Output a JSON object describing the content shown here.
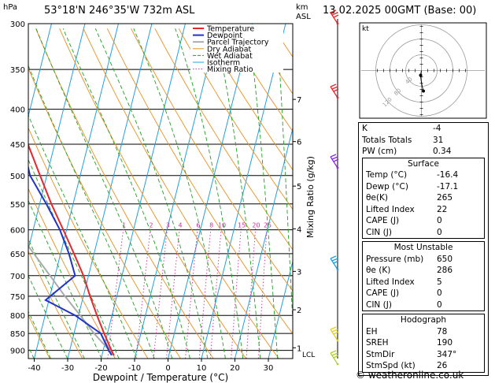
{
  "header": {
    "hpa_label": "hPa",
    "km_label": "km",
    "asl_label": "ASL",
    "station": "53°18'N  246°35'W  732m  ASL",
    "datetime": "13.02.2025  00GMT  (Base: 00)"
  },
  "legend": [
    "Temperature",
    "Dewpoint",
    "Parcel Trajectory",
    "Dry Adiabat",
    "Wet Adiabat",
    "Isotherm",
    "Mixing Ratio"
  ],
  "colors": {
    "temperature": "#e8262d",
    "dewpoint": "#2233cc",
    "parcel": "#aaaaaa",
    "dry_adiabat": "#e89020",
    "wet_adiabat": "#20a020",
    "isotherm": "#20a0e0",
    "mixing_ratio": "#cc30a0"
  },
  "chart_data": {
    "type": "line",
    "title": "",
    "xlabel": "Dewpoint / Temperature (°C)",
    "ylabel": "",
    "right_axis_label": "Mixing Ratio (g/kg)",
    "xlim": [
      -40,
      38
    ],
    "ylim_hpa": [
      925,
      300
    ],
    "pressure_ticks": [
      300,
      350,
      400,
      450,
      500,
      550,
      600,
      650,
      700,
      750,
      800,
      850,
      900
    ],
    "temperature_ticks": [
      -40,
      -30,
      -20,
      -10,
      0,
      10,
      20,
      30
    ],
    "km_ticks": [
      {
        "label": "7",
        "p": 387
      },
      {
        "label": "6",
        "p": 446
      },
      {
        "label": "5",
        "p": 518
      },
      {
        "label": "4",
        "p": 598
      },
      {
        "label": "3",
        "p": 690
      },
      {
        "label": "2",
        "p": 785
      },
      {
        "label": "1",
        "p": 892
      }
    ],
    "lcl_label": "LCL",
    "lcl_p": 910,
    "mixing_ratio_labels": [
      "1",
      "2",
      "3",
      "4",
      "6",
      "8",
      "10",
      "15",
      "20",
      "25"
    ],
    "mixing_ratio_values": [
      1,
      2,
      3,
      4,
      6,
      8,
      10,
      15,
      20,
      25
    ],
    "series": [
      {
        "name": "Temperature",
        "p": [
          915,
          900,
          850,
          800,
          750,
          700,
          650,
          600,
          550,
          500,
          450,
          420
        ],
        "t": [
          -16.4,
          -17.5,
          -21,
          -24.5,
          -28,
          -31.5,
          -36,
          -41,
          -46.5,
          -52,
          -58,
          -61
        ]
      },
      {
        "name": "Dewpoint",
        "p": [
          915,
          900,
          850,
          800,
          760,
          700,
          650,
          600,
          550,
          500,
          450,
          400,
          350,
          300
        ],
        "t": [
          -17.1,
          -18.3,
          -22,
          -31,
          -41,
          -34,
          -37.5,
          -42,
          -48,
          -55,
          -59.5,
          -65,
          -70,
          -75
        ]
      },
      {
        "name": "Parcel Trajectory",
        "p": [
          915,
          850,
          800,
          750,
          700,
          650,
          600,
          550,
          500,
          450,
          400
        ],
        "t": [
          -16.4,
          -24,
          -29.5,
          -35.5,
          -41.5,
          -48,
          -55,
          -62,
          -69.5,
          -77,
          -85
        ]
      }
    ]
  },
  "hodograph": {
    "label": "kt",
    "ring_labels": [
      "40",
      "80",
      "120"
    ],
    "points": [
      [
        0,
        0
      ],
      [
        -0.5,
        3
      ],
      [
        -1,
        7
      ],
      [
        -0.5,
        11
      ],
      [
        0,
        15
      ],
      [
        1,
        20
      ],
      [
        2.5,
        26
      ]
    ]
  },
  "indices": [
    {
      "label": "K",
      "value": "-4"
    },
    {
      "label": "Totals Totals",
      "value": "31"
    },
    {
      "label": "PW (cm)",
      "value": "0.34"
    }
  ],
  "surface": {
    "title": "Surface",
    "rows": [
      {
        "label": "Temp (°C)",
        "value": "-16.4"
      },
      {
        "label": "Dewp (°C)",
        "value": "-17.1"
      },
      {
        "label": "θe(K)",
        "value": "265"
      },
      {
        "label": "Lifted Index",
        "value": "22"
      },
      {
        "label": "CAPE (J)",
        "value": "0"
      },
      {
        "label": "CIN (J)",
        "value": "0"
      }
    ]
  },
  "most_unstable": {
    "title": "Most Unstable",
    "rows": [
      {
        "label": "Pressure (mb)",
        "value": "650"
      },
      {
        "label": "θe (K)",
        "value": "286"
      },
      {
        "label": "Lifted Index",
        "value": "5"
      },
      {
        "label": "CAPE (J)",
        "value": "0"
      },
      {
        "label": "CIN (J)",
        "value": "0"
      }
    ]
  },
  "hodograph_table": {
    "title": "Hodograph",
    "rows": [
      {
        "label": "EH",
        "value": "78"
      },
      {
        "label": "SREH",
        "value": "190"
      },
      {
        "label": "StmDir",
        "value": "347°"
      },
      {
        "label": "StmSpd (kt)",
        "value": "26"
      }
    ]
  },
  "footer": "© weatheronline.co.uk"
}
